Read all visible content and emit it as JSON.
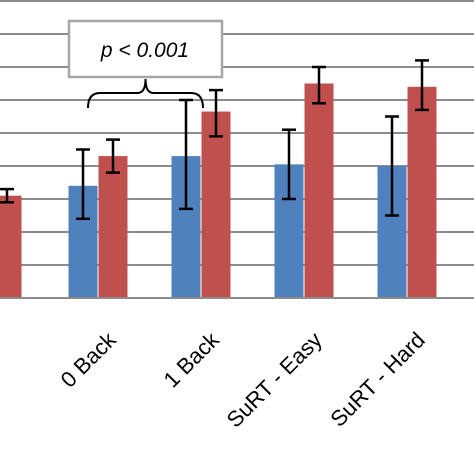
{
  "chart_data": {
    "type": "bar",
    "categories": [
      "",
      "0 Back",
      "1 Back",
      "SuRT - Easy",
      "SuRT - Hard"
    ],
    "series": [
      {
        "color": "#4f81bd",
        "values": [
          null,
          3.4,
          4.3,
          4.05,
          4.0
        ],
        "error_low": [
          null,
          2.4,
          2.7,
          3.0,
          2.5
        ],
        "error_high": [
          null,
          4.5,
          6.0,
          5.1,
          5.5
        ]
      },
      {
        "color": "#c0504d",
        "values": [
          3.1,
          4.3,
          5.65,
          6.5,
          6.4
        ],
        "error_low": [
          2.9,
          3.8,
          4.9,
          5.9,
          5.7
        ],
        "error_high": [
          3.3,
          4.8,
          6.3,
          7.0,
          7.2
        ]
      }
    ],
    "ylim": [
      0,
      8.9
    ],
    "grid": true,
    "legend": "none",
    "annotation": {
      "text": "p < 0.001",
      "spans": [
        "0 Back",
        "1 Back"
      ]
    }
  }
}
